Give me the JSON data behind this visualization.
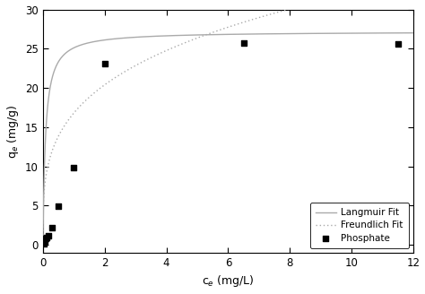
{
  "phosphate_x": [
    0.02,
    0.05,
    0.08,
    0.12,
    0.18,
    0.3,
    0.5,
    1.0,
    2.0,
    6.5,
    11.5
  ],
  "phosphate_y": [
    0.1,
    0.5,
    0.8,
    1.0,
    1.2,
    2.2,
    4.9,
    9.8,
    23.1,
    25.7,
    25.6
  ],
  "langmuir_qmax": 27.2,
  "langmuir_KL": 12.0,
  "freundlich_KF": 16.8,
  "freundlich_n": 0.28,
  "xlabel": "c$_e$ (mg/L)",
  "ylabel": "q$_e$ (mg/g)",
  "xlim": [
    0,
    12
  ],
  "ylim": [
    -1,
    30
  ],
  "xticks": [
    0,
    2,
    4,
    6,
    8,
    10,
    12
  ],
  "yticks": [
    0,
    5,
    10,
    15,
    20,
    25,
    30
  ],
  "legend_labels": [
    "Phosphate",
    "Langmuir Fit",
    "Freundlich Fit"
  ],
  "langmuir_color": "#aaaaaa",
  "freundlich_color": "#aaaaaa",
  "background_color": "#ffffff"
}
